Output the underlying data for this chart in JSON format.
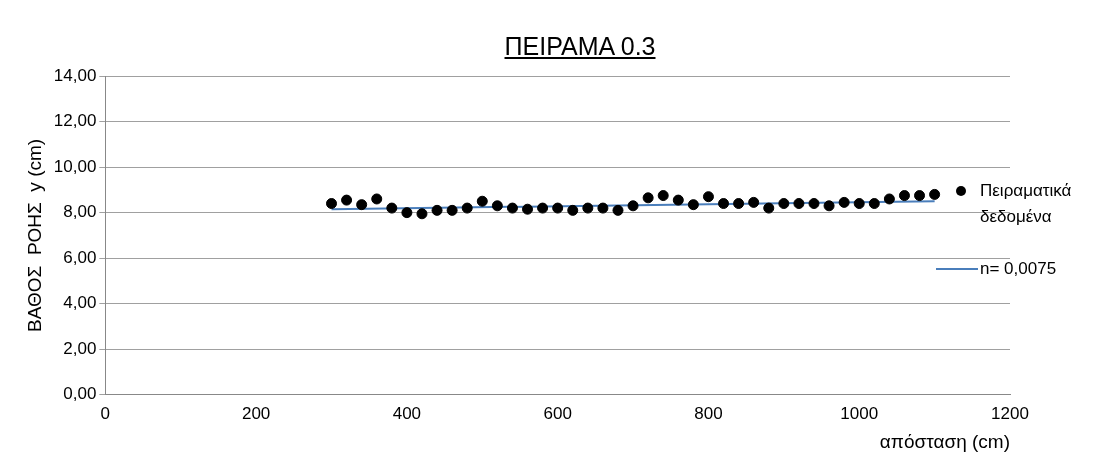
{
  "chart_data": {
    "type": "scatter",
    "title": "ΠΕΙΡΑΜΑ 0.3",
    "xlabel": "απόσταση (cm)",
    "ylabel": "ΒΑΘΟΣ  ΡΟΗΣ  y (cm)",
    "series": [
      {
        "name": "Πειραματικά δεδομένα",
        "color": "#000000",
        "marker": "circle",
        "x": [
          300,
          320,
          340,
          360,
          380,
          400,
          420,
          440,
          460,
          480,
          500,
          520,
          540,
          560,
          580,
          600,
          620,
          640,
          660,
          680,
          700,
          720,
          740,
          760,
          780,
          800,
          820,
          840,
          860,
          880,
          900,
          920,
          940,
          960,
          980,
          1000,
          1020,
          1040,
          1060,
          1080,
          1100
        ],
        "values": [
          8.4,
          8.55,
          8.35,
          8.6,
          8.2,
          8.0,
          7.95,
          8.1,
          8.1,
          8.2,
          8.5,
          8.3,
          8.2,
          8.15,
          8.2,
          8.2,
          8.1,
          8.2,
          8.2,
          8.1,
          8.3,
          8.65,
          8.75,
          8.55,
          8.35,
          8.7,
          8.4,
          8.4,
          8.45,
          8.2,
          8.4,
          8.4,
          8.4,
          8.3,
          8.45,
          8.4,
          8.4,
          8.6,
          8.75,
          8.75,
          8.8
        ]
      },
      {
        "name": "n= 0,0075",
        "type": "line",
        "color": "#4a7ebb",
        "marker": "none",
        "x": [
          300,
          1100
        ],
        "values": [
          8.15,
          8.5
        ]
      }
    ],
    "xlim": [
      0,
      1200
    ],
    "xticks": [
      0,
      200,
      400,
      600,
      800,
      1000,
      1200
    ],
    "ylim": [
      0,
      14
    ],
    "yticks": [
      {
        "value": 0,
        "label": "0,00"
      },
      {
        "value": 2,
        "label": "2,00"
      },
      {
        "value": 4,
        "label": "4,00"
      },
      {
        "value": 6,
        "label": "6,00"
      },
      {
        "value": 8,
        "label": "8,00"
      },
      {
        "value": 10,
        "label": "10,00"
      },
      {
        "value": 12,
        "label": "12,00"
      },
      {
        "value": 14,
        "label": "14,00"
      }
    ],
    "grid": "y",
    "legend": "right"
  }
}
